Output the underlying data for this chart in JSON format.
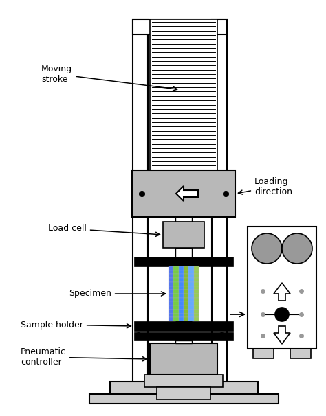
{
  "bg_color": "#ffffff",
  "line_color": "#000000",
  "gray_fill": "#b8b8b8",
  "light_gray": "#cccccc",
  "dark_gray": "#999999",
  "figsize": [
    4.74,
    6.06
  ],
  "dpi": 100,
  "labels": {
    "moving_stroke": "Moving\nstroke",
    "loading_direction": "Loading\ndirection",
    "load_cell": "Load cell",
    "specimen": "Specimen",
    "sample_holder": "Sample holder",
    "pneumatic_controller": "Pneumatic\ncontroller"
  }
}
